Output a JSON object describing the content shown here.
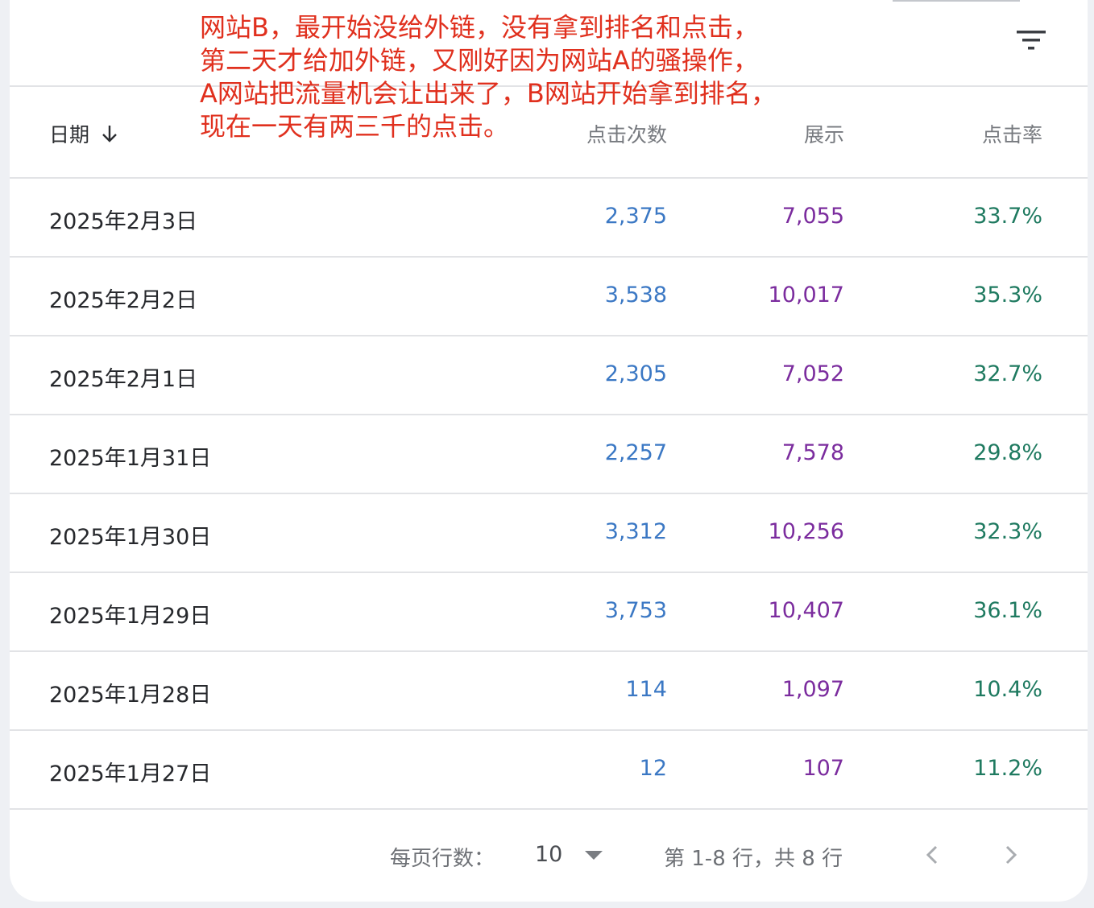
{
  "annotation": {
    "lines": [
      "网站B，最开始没给外链，没有拿到排名和点击，",
      "第二天才给加外链，又刚好因为网站A的骚操作，",
      "A网站把流量机会让出来了，B网站开始拿到排名，",
      "现在一天有两三千的点击。"
    ]
  },
  "table": {
    "headers": {
      "date": "日期",
      "clicks": "点击次数",
      "impressions": "展示",
      "ctr": "点击率"
    },
    "rows": [
      {
        "date": "2025年2月3日",
        "clicks": "2,375",
        "impressions": "7,055",
        "ctr": "33.7%"
      },
      {
        "date": "2025年2月2日",
        "clicks": "3,538",
        "impressions": "10,017",
        "ctr": "35.3%"
      },
      {
        "date": "2025年2月1日",
        "clicks": "2,305",
        "impressions": "7,052",
        "ctr": "32.7%"
      },
      {
        "date": "2025年1月31日",
        "clicks": "2,257",
        "impressions": "7,578",
        "ctr": "29.8%"
      },
      {
        "date": "2025年1月30日",
        "clicks": "3,312",
        "impressions": "10,256",
        "ctr": "32.3%"
      },
      {
        "date": "2025年1月29日",
        "clicks": "3,753",
        "impressions": "10,407",
        "ctr": "36.1%"
      },
      {
        "date": "2025年1月28日",
        "clicks": "114",
        "impressions": "1,097",
        "ctr": "10.4%"
      },
      {
        "date": "2025年1月27日",
        "clicks": "12",
        "impressions": "107",
        "ctr": "11.2%"
      }
    ]
  },
  "pagination": {
    "rows_per_page_label": "每页行数：",
    "rows_per_page_value": "10",
    "range_text": "第 1-8 行，共 8 行"
  },
  "icons": {
    "filter": "filter-icon",
    "sort": "arrow-down-icon",
    "dropdown": "caret-down-icon",
    "prev": "chevron-left-icon",
    "next": "chevron-right-icon"
  },
  "colors": {
    "clicks": "#3b78c4",
    "impressions": "#7b2c9e",
    "ctr": "#1f7a60",
    "annotation": "#e0301e"
  }
}
